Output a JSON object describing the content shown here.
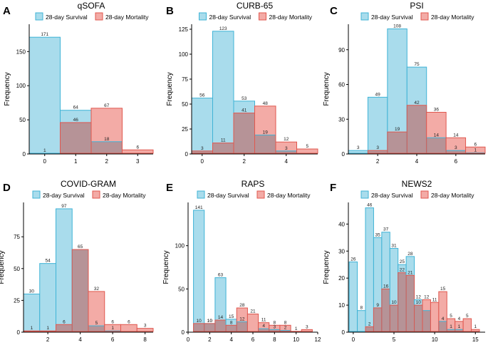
{
  "figure": {
    "colors": {
      "survival_fill": "#a9dcec",
      "survival_stroke": "#3fb3d6",
      "mortality_fill": "#f3aba6",
      "mortality_stroke": "#e0574e",
      "overlap_fill": "#b69397",
      "axis": "#000000"
    }
  },
  "chart_data": [
    {
      "letter": "A",
      "title": "qSOFA",
      "type": "bar",
      "ylabel": "Frequency",
      "legend": [
        "28-day Survival",
        "28-day Mortality"
      ],
      "xlim": [
        -0.5,
        3.5
      ],
      "ylim": [
        0,
        190
      ],
      "xticks": [
        0,
        1,
        2,
        3
      ],
      "yticks": [
        0,
        50,
        100,
        150
      ],
      "bins": [
        0,
        1,
        2,
        3
      ],
      "binwidth": 1,
      "series": [
        {
          "name": "28-day Survival",
          "values": [
            171,
            64,
            18,
            0
          ],
          "labels": [
            "171",
            "64",
            "18",
            ""
          ]
        },
        {
          "name": "28-day Mortality",
          "values": [
            1,
            46,
            67,
            6
          ],
          "labels": [
            "1",
            "46",
            "67",
            "6"
          ]
        }
      ]
    },
    {
      "letter": "B",
      "title": "CURB-65",
      "type": "bar",
      "ylabel": "Frequency",
      "legend": [
        "28-day Survival",
        "28-day Mortality"
      ],
      "xlim": [
        -0.5,
        5.5
      ],
      "ylim": [
        0,
        130
      ],
      "xticks": [
        0,
        2,
        4
      ],
      "yticks": [
        0,
        25,
        50,
        75,
        100,
        125
      ],
      "bins": [
        0,
        1,
        2,
        3,
        4,
        5
      ],
      "binwidth": 1,
      "series": [
        {
          "name": "28-day Survival",
          "values": [
            56,
            123,
            53,
            19,
            3,
            0
          ],
          "labels": [
            "56",
            "123",
            "53",
            "19",
            "3",
            ""
          ]
        },
        {
          "name": "28-day Mortality",
          "values": [
            3,
            11,
            41,
            48,
            12,
            5
          ],
          "labels": [
            "3",
            "11",
            "41",
            "48",
            "12",
            "5"
          ]
        }
      ]
    },
    {
      "letter": "C",
      "title": "PSI",
      "type": "bar",
      "ylabel": "Frequency",
      "legend": [
        "28-day Survival",
        "28-day Mortality"
      ],
      "xlim": [
        0.5,
        7.5
      ],
      "ylim": [
        0,
        112
      ],
      "xticks": [
        2,
        4,
        6
      ],
      "yticks": [
        0,
        30,
        60,
        90
      ],
      "bins": [
        1,
        2,
        3,
        4,
        5,
        6,
        7
      ],
      "binwidth": 1,
      "series": [
        {
          "name": "28-day Survival",
          "values": [
            3,
            49,
            108,
            75,
            14,
            3,
            1
          ],
          "labels": [
            "3",
            "49",
            "108",
            "75",
            "14",
            "3",
            "1"
          ]
        },
        {
          "name": "28-day Mortality",
          "values": [
            0,
            3,
            19,
            42,
            36,
            14,
            6
          ],
          "labels": [
            "",
            "3",
            "19",
            "42",
            "36",
            "14",
            "6"
          ]
        }
      ]
    },
    {
      "letter": "D",
      "title": "COVID-GRAM",
      "type": "bar",
      "ylabel": "Frequency",
      "legend": [
        "28-day Survival",
        "28-day Mortality"
      ],
      "xlim": [
        0.5,
        8.5
      ],
      "ylim": [
        0,
        102
      ],
      "xticks": [
        2,
        4,
        6,
        8
      ],
      "yticks": [
        0,
        25,
        50,
        75
      ],
      "bins": [
        1,
        2,
        3,
        4,
        5,
        6,
        7,
        8
      ],
      "binwidth": 1,
      "series": [
        {
          "name": "28-day Survival",
          "values": [
            30,
            54,
            97,
            65,
            5,
            1,
            0,
            0
          ],
          "labels": [
            "30",
            "54",
            "97",
            "",
            "5",
            "1",
            "",
            ""
          ]
        },
        {
          "name": "28-day Mortality",
          "values": [
            1,
            1,
            6,
            65,
            32,
            6,
            6,
            3
          ],
          "labels": [
            "1",
            "1",
            "6",
            "65",
            "32",
            "6",
            "6",
            "3"
          ]
        }
      ]
    },
    {
      "letter": "E",
      "title": "RAPS",
      "type": "bar",
      "ylabel": "Frequency",
      "legend": [
        "28-day Survival",
        "28-day Mortality"
      ],
      "xlim": [
        0,
        12
      ],
      "ylim": [
        0,
        150
      ],
      "xticks": [
        0,
        2,
        4,
        6,
        8,
        10,
        12
      ],
      "yticks": [
        0,
        50,
        100
      ],
      "bins": [
        1,
        2,
        3,
        4,
        5,
        6,
        7,
        8,
        9,
        10,
        11
      ],
      "binwidth": 1,
      "series": [
        {
          "name": "28-day Survival",
          "values": [
            141,
            10,
            63,
            15,
            12,
            0,
            4,
            3,
            2,
            0,
            0
          ],
          "labels": [
            "141",
            "10",
            "63",
            "15",
            "12",
            "",
            "4",
            "3",
            "2",
            "",
            ""
          ]
        },
        {
          "name": "28-day Mortality",
          "values": [
            10,
            10,
            14,
            8,
            28,
            21,
            11,
            8,
            8,
            1,
            3
          ],
          "labels": [
            "10",
            "10",
            "14",
            "8",
            "28",
            "21",
            "11",
            "8",
            "8",
            "1",
            "3"
          ]
        }
      ]
    },
    {
      "letter": "F",
      "title": "NEWS2",
      "type": "bar",
      "ylabel": "Frequency",
      "legend": [
        "28-day Survival",
        "28-day Mortality"
      ],
      "xlim": [
        -0.6,
        16.2
      ],
      "ylim": [
        0,
        48
      ],
      "xticks": [
        0,
        5,
        10,
        15
      ],
      "yticks": [
        0,
        10,
        20,
        30,
        40
      ],
      "bins": [
        0,
        1,
        2,
        3,
        4,
        5,
        6,
        7,
        8,
        9,
        10,
        11,
        12,
        13,
        14,
        15
      ],
      "binwidth": 1,
      "series": [
        {
          "name": "28-day Survival",
          "values": [
            26,
            8,
            46,
            35,
            37,
            31,
            25,
            28,
            12,
            8,
            0,
            4,
            1,
            1,
            0,
            0
          ],
          "labels": [
            "26",
            "8",
            "46",
            "35",
            "37",
            "31",
            "25",
            "28",
            "12",
            "",
            "",
            "4",
            "1",
            "1",
            "",
            ""
          ]
        },
        {
          "name": "28-day Mortality",
          "values": [
            0,
            0,
            2,
            9,
            16,
            10,
            22,
            21,
            10,
            12,
            11,
            15,
            5,
            4,
            5,
            1
          ],
          "labels": [
            "",
            "",
            "2",
            "9",
            "16",
            "10",
            "22",
            "21",
            "10",
            "12",
            "11",
            "15",
            "5",
            "4",
            "5",
            "1"
          ]
        }
      ]
    }
  ]
}
